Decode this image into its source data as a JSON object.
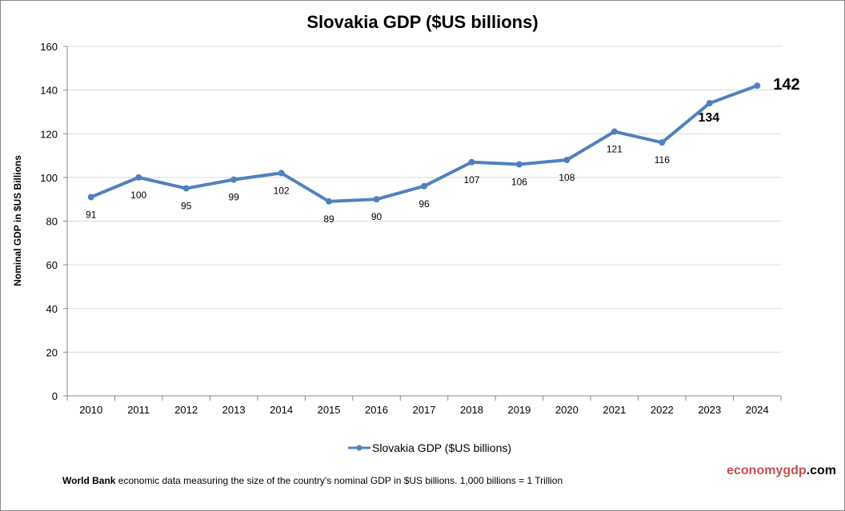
{
  "chart_data": {
    "type": "line",
    "title": "Slovakia GDP ($US billions)",
    "xlabel": "",
    "ylabel": "Nominal GDP in $US Billions",
    "categories": [
      "2010",
      "2011",
      "2012",
      "2013",
      "2014",
      "2015",
      "2016",
      "2017",
      "2018",
      "2019",
      "2020",
      "2021",
      "2022",
      "2023",
      "2024"
    ],
    "series": [
      {
        "name": "Slovakia GDP ($US billions)",
        "values": [
          91,
          100,
          95,
          99,
          102,
          89,
          90,
          96,
          107,
          106,
          108,
          121,
          116,
          134,
          142
        ]
      }
    ],
    "data_labels": [
      "91",
      "100",
      "95",
      "99",
      "102",
      "89",
      "90",
      "96",
      "107",
      "106",
      "108",
      "121",
      "116",
      "134",
      "142"
    ],
    "ylim": [
      0,
      160
    ],
    "yticks": [
      "0",
      "20",
      "40",
      "60",
      "80",
      "100",
      "120",
      "140",
      "160"
    ],
    "grid": true,
    "legend": "bottom",
    "color": "#4f81bd"
  },
  "footer": {
    "source_bold": "World Bank",
    "source_text": " economic data  measuring the size of the country's nominal  GDP in $US billions. 1,000 billions = 1 Trillion",
    "brand_part1": "economygdp",
    "brand_part2": ".com",
    "brand_color": "#c0504d"
  }
}
